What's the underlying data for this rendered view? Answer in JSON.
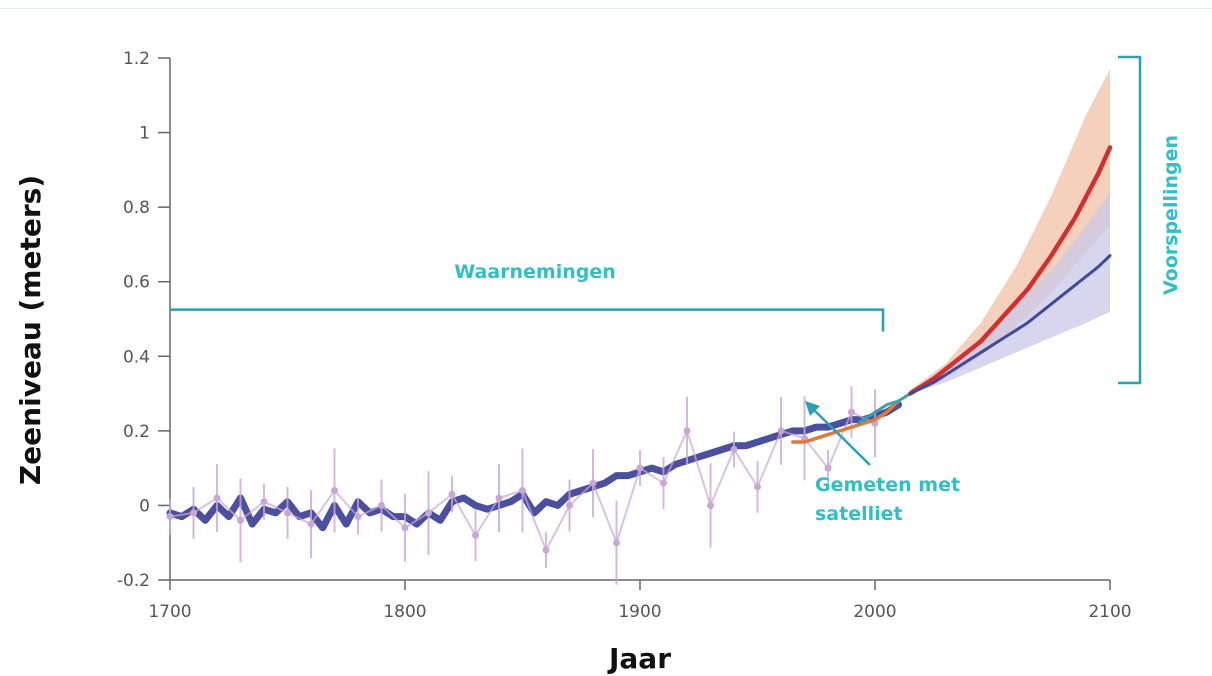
{
  "chart_data": {
    "type": "line",
    "title": "",
    "xlabel": "Jaar",
    "ylabel": "Zeeniveau (meters)",
    "xlim": [
      1700,
      2100
    ],
    "ylim": [
      -0.2,
      1.2
    ],
    "x_ticks": [
      "1700",
      "1800",
      "1900",
      "2000",
      "2100"
    ],
    "y_ticks": [
      "-0.2",
      "0",
      "0.2",
      "0.4",
      "0.6",
      "0.8",
      "1",
      "1.2"
    ],
    "annotations": {
      "observations": "Waarnemingen",
      "projections": "Voorspellingen",
      "satellite_line1": "Gemeten met",
      "satellite_line2": "satelliet"
    },
    "series": [
      {
        "color": "#4a4f9e",
        "x": [
          1700,
          1705,
          1710,
          1715,
          1720,
          1725,
          1730,
          1735,
          1740,
          1745,
          1750,
          1755,
          1760,
          1765,
          1770,
          1775,
          1780,
          1785,
          1790,
          1795,
          1800,
          1805,
          1810,
          1815,
          1820,
          1825,
          1830,
          1835,
          1840,
          1845,
          1850,
          1855,
          1860,
          1865,
          1870,
          1875,
          1880,
          1885,
          1890,
          1895,
          1900,
          1905,
          1910,
          1915,
          1920,
          1925,
          1930,
          1935,
          1940,
          1945,
          1950,
          1955,
          1960,
          1965,
          1970,
          1975,
          1980,
          1985,
          1990,
          1995,
          2000,
          2005,
          2010
        ],
        "y": [
          -0.02,
          -0.03,
          -0.01,
          -0.04,
          0.0,
          -0.03,
          0.02,
          -0.05,
          -0.01,
          -0.02,
          0.01,
          -0.03,
          -0.02,
          -0.06,
          0.0,
          -0.05,
          0.01,
          -0.02,
          -0.01,
          -0.03,
          -0.03,
          -0.05,
          -0.02,
          -0.04,
          0.01,
          0.02,
          0.0,
          -0.01,
          0.0,
          0.01,
          0.03,
          -0.02,
          0.01,
          0.0,
          0.03,
          0.04,
          0.05,
          0.06,
          0.08,
          0.08,
          0.09,
          0.1,
          0.09,
          0.11,
          0.12,
          0.13,
          0.14,
          0.15,
          0.16,
          0.16,
          0.17,
          0.18,
          0.19,
          0.2,
          0.2,
          0.21,
          0.21,
          0.22,
          0.23,
          0.23,
          0.24,
          0.25,
          0.27
        ]
      },
      {
        "color": "#c9a6d6",
        "x": [
          1700,
          1710,
          1720,
          1730,
          1740,
          1750,
          1760,
          1770,
          1780,
          1790,
          1800,
          1810,
          1820,
          1830,
          1840,
          1850,
          1860,
          1870,
          1880,
          1890,
          1900,
          1910,
          1920,
          1930,
          1940,
          1950,
          1960,
          1970,
          1980,
          1990,
          2000
        ],
        "y": [
          -0.03,
          -0.02,
          0.02,
          -0.04,
          0.01,
          -0.02,
          -0.05,
          0.04,
          -0.03,
          0.0,
          -0.06,
          -0.02,
          0.03,
          -0.08,
          0.02,
          0.04,
          -0.12,
          0.0,
          0.06,
          -0.1,
          0.1,
          0.06,
          0.2,
          0.0,
          0.15,
          0.05,
          0.2,
          0.18,
          0.1,
          0.25,
          0.22
        ]
      },
      {
        "color": "#e07a3a",
        "x": [
          1965,
          1970,
          1975,
          1980,
          1985,
          1990,
          1995,
          2000,
          2005,
          2010
        ],
        "y": [
          0.17,
          0.17,
          0.18,
          0.19,
          0.2,
          0.21,
          0.22,
          0.23,
          0.25,
          0.28
        ]
      },
      {
        "color": "#3aa0b0",
        "x": [
          1993,
          1995,
          2000,
          2005,
          2010,
          2015
        ],
        "y": [
          0.22,
          0.23,
          0.25,
          0.27,
          0.28,
          0.3
        ]
      },
      {
        "color": "#d32f2f",
        "x": [
          2015,
          2025,
          2035,
          2045,
          2055,
          2065,
          2075,
          2085,
          2095,
          2100
        ],
        "y": [
          0.3,
          0.34,
          0.39,
          0.44,
          0.51,
          0.58,
          0.67,
          0.77,
          0.89,
          0.96
        ]
      },
      {
        "color": "#3f4a9c",
        "x": [
          2015,
          2025,
          2035,
          2045,
          2055,
          2065,
          2075,
          2085,
          2095,
          2100
        ],
        "y": [
          0.3,
          0.33,
          0.37,
          0.41,
          0.45,
          0.49,
          0.54,
          0.59,
          0.64,
          0.67
        ]
      }
    ],
    "bands": [
      {
        "color": "#f2c0a6",
        "x": [
          2015,
          2030,
          2045,
          2060,
          2075,
          2090,
          2100
        ],
        "lower": [
          0.3,
          0.34,
          0.4,
          0.48,
          0.57,
          0.68,
          0.75
        ],
        "upper": [
          0.31,
          0.38,
          0.49,
          0.64,
          0.83,
          1.05,
          1.17
        ]
      },
      {
        "color": "#c9c8ea",
        "x": [
          2015,
          2030,
          2045,
          2060,
          2075,
          2090,
          2100
        ],
        "lower": [
          0.3,
          0.33,
          0.37,
          0.41,
          0.45,
          0.49,
          0.52
        ],
        "upper": [
          0.31,
          0.37,
          0.45,
          0.54,
          0.63,
          0.75,
          0.84
        ]
      }
    ]
  }
}
